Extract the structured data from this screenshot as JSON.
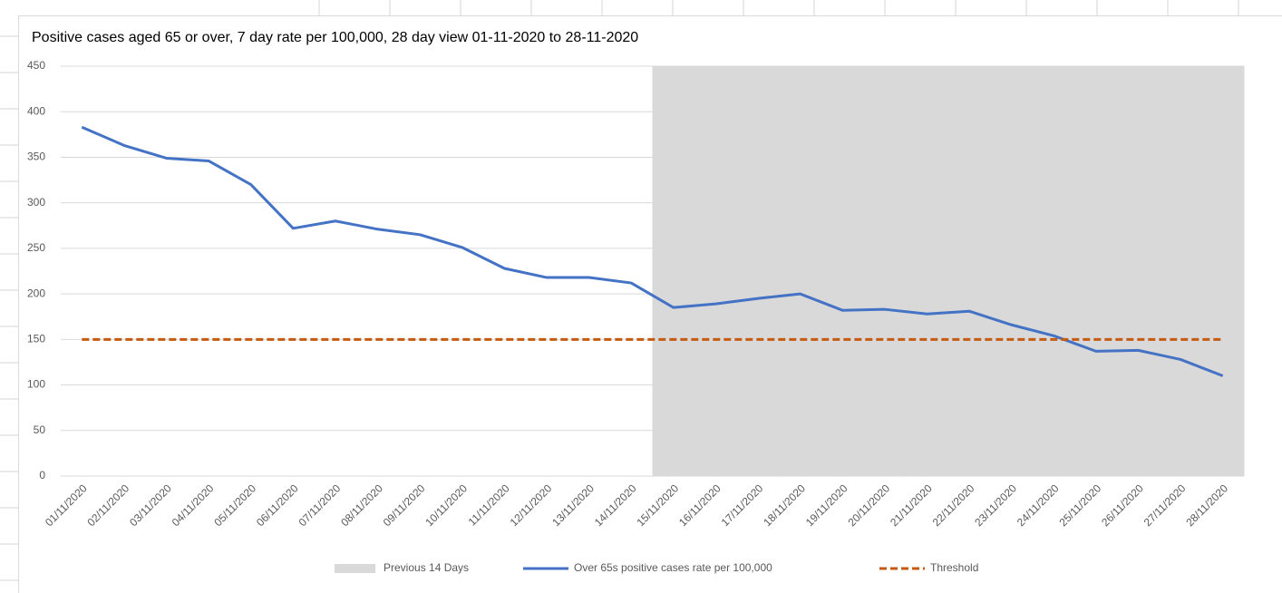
{
  "chart_data": {
    "type": "combo",
    "title": "Positive cases aged 65 or over, 7 day rate per 100,000,  28 day view 01-11-2020 to 28-11-2020",
    "categories": [
      "01/11/2020",
      "02/11/2020",
      "03/11/2020",
      "04/11/2020",
      "05/11/2020",
      "06/11/2020",
      "07/11/2020",
      "08/11/2020",
      "09/11/2020",
      "10/11/2020",
      "11/11/2020",
      "12/11/2020",
      "13/11/2020",
      "14/11/2020",
      "15/11/2020",
      "16/11/2020",
      "17/11/2020",
      "18/11/2020",
      "19/11/2020",
      "20/11/2020",
      "21/11/2020",
      "22/11/2020",
      "23/11/2020",
      "24/11/2020",
      "25/11/2020",
      "26/11/2020",
      "27/11/2020",
      "28/11/2020"
    ],
    "series": [
      {
        "name": "Previous 14 Days",
        "type": "bar",
        "color": "#d9d9d9",
        "values": [
          null,
          null,
          null,
          null,
          null,
          null,
          null,
          null,
          null,
          null,
          null,
          null,
          null,
          null,
          450,
          450,
          450,
          450,
          450,
          450,
          450,
          450,
          450,
          450,
          450,
          450,
          450,
          450
        ]
      },
      {
        "name": "Over 65s positive cases rate per 100,000",
        "type": "line",
        "color": "#4472c4",
        "values": [
          383,
          363,
          349,
          346,
          320,
          272,
          280,
          271,
          265,
          251,
          228,
          218,
          218,
          212,
          185,
          189,
          195,
          200,
          182,
          183,
          178,
          181,
          166,
          154,
          137,
          138,
          128,
          110
        ]
      },
      {
        "name": "Threshold",
        "type": "line",
        "color": "#c55a11",
        "dashed": true,
        "values": [
          150,
          150,
          150,
          150,
          150,
          150,
          150,
          150,
          150,
          150,
          150,
          150,
          150,
          150,
          150,
          150,
          150,
          150,
          150,
          150,
          150,
          150,
          150,
          150,
          150,
          150,
          150,
          150
        ]
      }
    ],
    "ylim": [
      0,
      450
    ],
    "yticks": [
      0,
      50,
      100,
      150,
      200,
      250,
      300,
      350,
      400,
      450
    ],
    "grid": true,
    "legend": "bottom"
  }
}
